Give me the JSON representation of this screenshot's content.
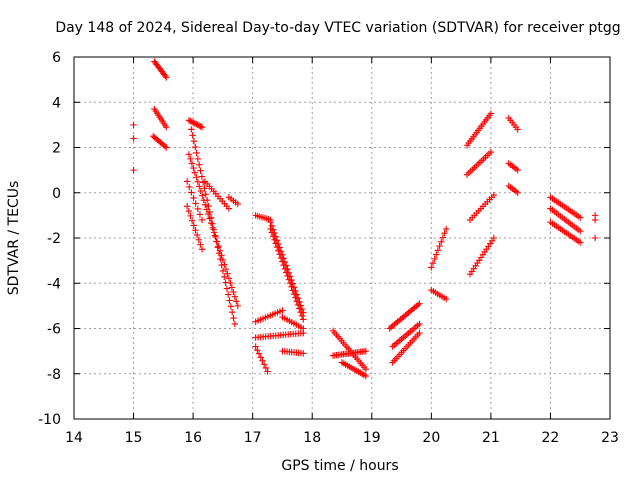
{
  "chart_data": {
    "type": "scatter",
    "title": "Day 148 of 2024, Sidereal Day-to-day VTEC variation (SDTVAR) for receiver ptgg",
    "xlabel": "GPS time / hours",
    "ylabel": "SDTVAR / TECUs",
    "xlim": [
      14,
      23
    ],
    "ylim": [
      -10,
      6
    ],
    "xticks": [
      14,
      15,
      16,
      17,
      18,
      19,
      20,
      21,
      22,
      23
    ],
    "yticks": [
      -10,
      -8,
      -6,
      -4,
      -2,
      0,
      2,
      4,
      6
    ],
    "grid": true,
    "legend": "none",
    "marker": "+",
    "series": [
      {
        "name": "SDTVAR",
        "color": "#ff0000",
        "tracks": [
          {
            "x0": 15.0,
            "x1": 15.0,
            "y0": 3.0,
            "y1": 3.0,
            "n": 1
          },
          {
            "x0": 15.0,
            "x1": 15.0,
            "y0": 2.4,
            "y1": 2.4,
            "n": 1
          },
          {
            "x0": 15.0,
            "x1": 15.0,
            "y0": 1.0,
            "y1": 1.0,
            "n": 1
          },
          {
            "x0": 15.35,
            "x1": 15.55,
            "y0": 5.8,
            "y1": 5.1,
            "n": 12
          },
          {
            "x0": 15.35,
            "x1": 15.55,
            "y0": 3.7,
            "y1": 2.9,
            "n": 10
          },
          {
            "x0": 15.33,
            "x1": 15.55,
            "y0": 2.5,
            "y1": 2.0,
            "n": 10
          },
          {
            "x0": 15.93,
            "x1": 16.15,
            "y0": 3.2,
            "y1": 2.9,
            "n": 10
          },
          {
            "x0": 15.93,
            "x1": 16.75,
            "y0": 1.7,
            "y1": -5.0,
            "n": 34
          },
          {
            "x0": 15.97,
            "x1": 16.7,
            "y0": 2.8,
            "y1": -5.8,
            "n": 34
          },
          {
            "x0": 15.9,
            "x1": 16.15,
            "y0": 0.5,
            "y1": -1.2,
            "n": 8
          },
          {
            "x0": 15.9,
            "x1": 16.15,
            "y0": -0.6,
            "y1": -2.5,
            "n": 10
          },
          {
            "x0": 16.2,
            "x1": 16.6,
            "y0": 0.5,
            "y1": -0.7,
            "n": 12
          },
          {
            "x0": 16.6,
            "x1": 16.75,
            "y0": -0.2,
            "y1": -0.5,
            "n": 5
          },
          {
            "x0": 17.05,
            "x1": 17.3,
            "y0": -1.0,
            "y1": -1.2,
            "n": 8
          },
          {
            "x0": 17.3,
            "x1": 17.85,
            "y0": -1.3,
            "y1": -5.3,
            "n": 26
          },
          {
            "x0": 17.3,
            "x1": 17.85,
            "y0": -1.6,
            "y1": -5.6,
            "n": 26
          },
          {
            "x0": 17.05,
            "x1": 17.5,
            "y0": -5.7,
            "y1": -5.2,
            "n": 12
          },
          {
            "x0": 17.5,
            "x1": 17.85,
            "y0": -5.5,
            "y1": -6.0,
            "n": 10
          },
          {
            "x0": 17.05,
            "x1": 17.85,
            "y0": -6.4,
            "y1": -6.2,
            "n": 20
          },
          {
            "x0": 17.05,
            "x1": 17.25,
            "y0": -6.8,
            "y1": -7.9,
            "n": 8
          },
          {
            "x0": 17.5,
            "x1": 17.85,
            "y0": -7.0,
            "y1": -7.1,
            "n": 10
          },
          {
            "x0": 18.35,
            "x1": 18.9,
            "y0": -6.1,
            "y1": -7.8,
            "n": 20
          },
          {
            "x0": 18.35,
            "x1": 18.9,
            "y0": -7.2,
            "y1": -7.0,
            "n": 20
          },
          {
            "x0": 18.5,
            "x1": 18.9,
            "y0": -7.5,
            "y1": -8.1,
            "n": 14
          },
          {
            "x0": 19.3,
            "x1": 19.8,
            "y0": -6.0,
            "y1": -4.9,
            "n": 20
          },
          {
            "x0": 19.35,
            "x1": 19.8,
            "y0": -6.8,
            "y1": -5.8,
            "n": 16
          },
          {
            "x0": 19.35,
            "x1": 19.8,
            "y0": -7.5,
            "y1": -6.2,
            "n": 16
          },
          {
            "x0": 20.0,
            "x1": 20.25,
            "y0": -3.3,
            "y1": -1.6,
            "n": 10
          },
          {
            "x0": 20.0,
            "x1": 20.25,
            "y0": -4.3,
            "y1": -4.7,
            "n": 8
          },
          {
            "x0": 20.6,
            "x1": 21.0,
            "y0": 2.1,
            "y1": 3.5,
            "n": 16
          },
          {
            "x0": 20.6,
            "x1": 21.0,
            "y0": 0.8,
            "y1": 1.8,
            "n": 14
          },
          {
            "x0": 20.65,
            "x1": 21.05,
            "y0": -1.2,
            "y1": -0.1,
            "n": 12
          },
          {
            "x0": 20.65,
            "x1": 21.05,
            "y0": -3.6,
            "y1": -2.0,
            "n": 14
          },
          {
            "x0": 21.3,
            "x1": 21.45,
            "y0": 3.3,
            "y1": 2.8,
            "n": 6
          },
          {
            "x0": 21.3,
            "x1": 21.45,
            "y0": 1.3,
            "y1": 1.0,
            "n": 6
          },
          {
            "x0": 21.3,
            "x1": 21.45,
            "y0": 0.3,
            "y1": 0.0,
            "n": 6
          },
          {
            "x0": 22.0,
            "x1": 22.5,
            "y0": -0.2,
            "y1": -1.1,
            "n": 16
          },
          {
            "x0": 22.0,
            "x1": 22.5,
            "y0": -0.7,
            "y1": -1.7,
            "n": 16
          },
          {
            "x0": 22.0,
            "x1": 22.5,
            "y0": -1.3,
            "y1": -2.2,
            "n": 16
          },
          {
            "x0": 22.75,
            "x1": 22.75,
            "y0": -1.0,
            "y1": -1.0,
            "n": 1
          },
          {
            "x0": 22.75,
            "x1": 22.75,
            "y0": -1.2,
            "y1": -1.2,
            "n": 1
          },
          {
            "x0": 22.75,
            "x1": 22.75,
            "y0": -2.0,
            "y1": -2.0,
            "n": 1
          }
        ]
      }
    ]
  }
}
